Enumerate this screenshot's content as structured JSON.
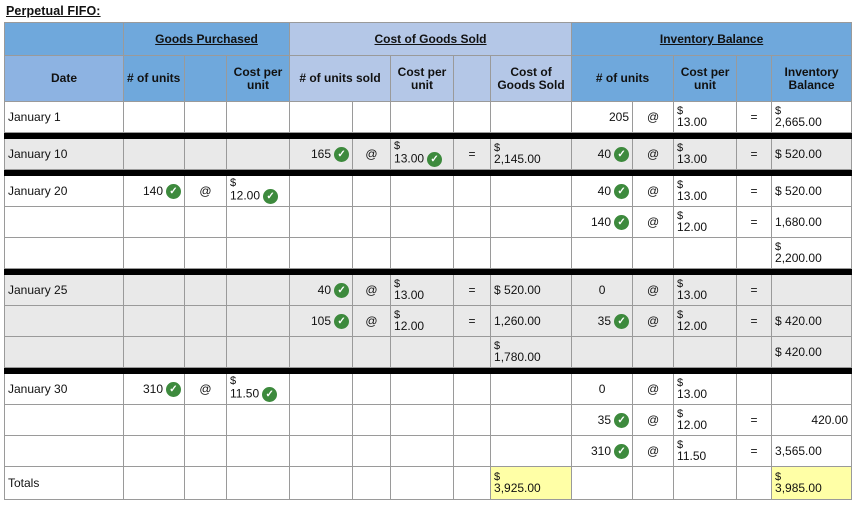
{
  "title": "Perpetual FIFO:",
  "groups": {
    "goods_purchased": "Goods Purchased",
    "cogs": "Cost of Goods Sold",
    "inventory": "Inventory Balance"
  },
  "headers": {
    "date": "Date",
    "gp_units": "# of units",
    "gp_cost": "Cost per unit",
    "cg_units": "# of units sold",
    "cg_cost": "Cost per unit",
    "cg_total": "Cost of Goods Sold",
    "ib_units": "# of units",
    "ib_cost": "Cost per unit",
    "ib_balance": "Inventory Balance"
  },
  "symbols": {
    "at": "@",
    "eq": "=",
    "dollar": "$"
  },
  "rows": {
    "jan1": {
      "date": "January 1",
      "ib_units": "205",
      "ib_cost": "13.00",
      "ib_balance": "2,665.00"
    },
    "jan10": {
      "date": "January 10",
      "cg_units": "165",
      "cg_cost": "13.00",
      "cg_total": "2,145.00",
      "ib_units": "40",
      "ib_cost": "13.00",
      "ib_balance": "$ 520.00"
    },
    "jan20a": {
      "date": "January 20",
      "gp_units": "140",
      "gp_cost": "12.00",
      "ib_units": "40",
      "ib_cost": "13.00",
      "ib_balance": "$ 520.00"
    },
    "jan20b": {
      "ib_units": "140",
      "ib_cost": "12.00",
      "ib_balance": "1,680.00"
    },
    "jan20c": {
      "ib_balance": "2,200.00"
    },
    "jan25a": {
      "date": "January 25",
      "cg_units": "40",
      "cg_cost": "13.00",
      "cg_total": "$ 520.00",
      "ib_units": "0",
      "ib_cost": "13.00"
    },
    "jan25b": {
      "cg_units": "105",
      "cg_cost": "12.00",
      "cg_total": "1,260.00",
      "ib_units": "35",
      "ib_cost": "12.00",
      "ib_balance": "$ 420.00"
    },
    "jan25c": {
      "cg_total": "1,780.00",
      "ib_balance": "$ 420.00"
    },
    "jan30a": {
      "date": "January 30",
      "gp_units": "310",
      "gp_cost": "11.50",
      "ib_units": "0",
      "ib_cost": "13.00"
    },
    "jan30b": {
      "ib_units": "35",
      "ib_cost": "12.00",
      "ib_balance": "420.00"
    },
    "jan30c": {
      "ib_units": "310",
      "ib_cost": "11.50",
      "ib_balance": "3,565.00"
    },
    "totals": {
      "date": "Totals",
      "cg_total": "3,925.00",
      "ib_balance": "3,985.00"
    }
  },
  "colors": {
    "header_blue": "#6fa8dc",
    "cogs_header": "#b4c7e7",
    "highlight": "#ffffa6",
    "check_green": "#3d8a3d"
  }
}
